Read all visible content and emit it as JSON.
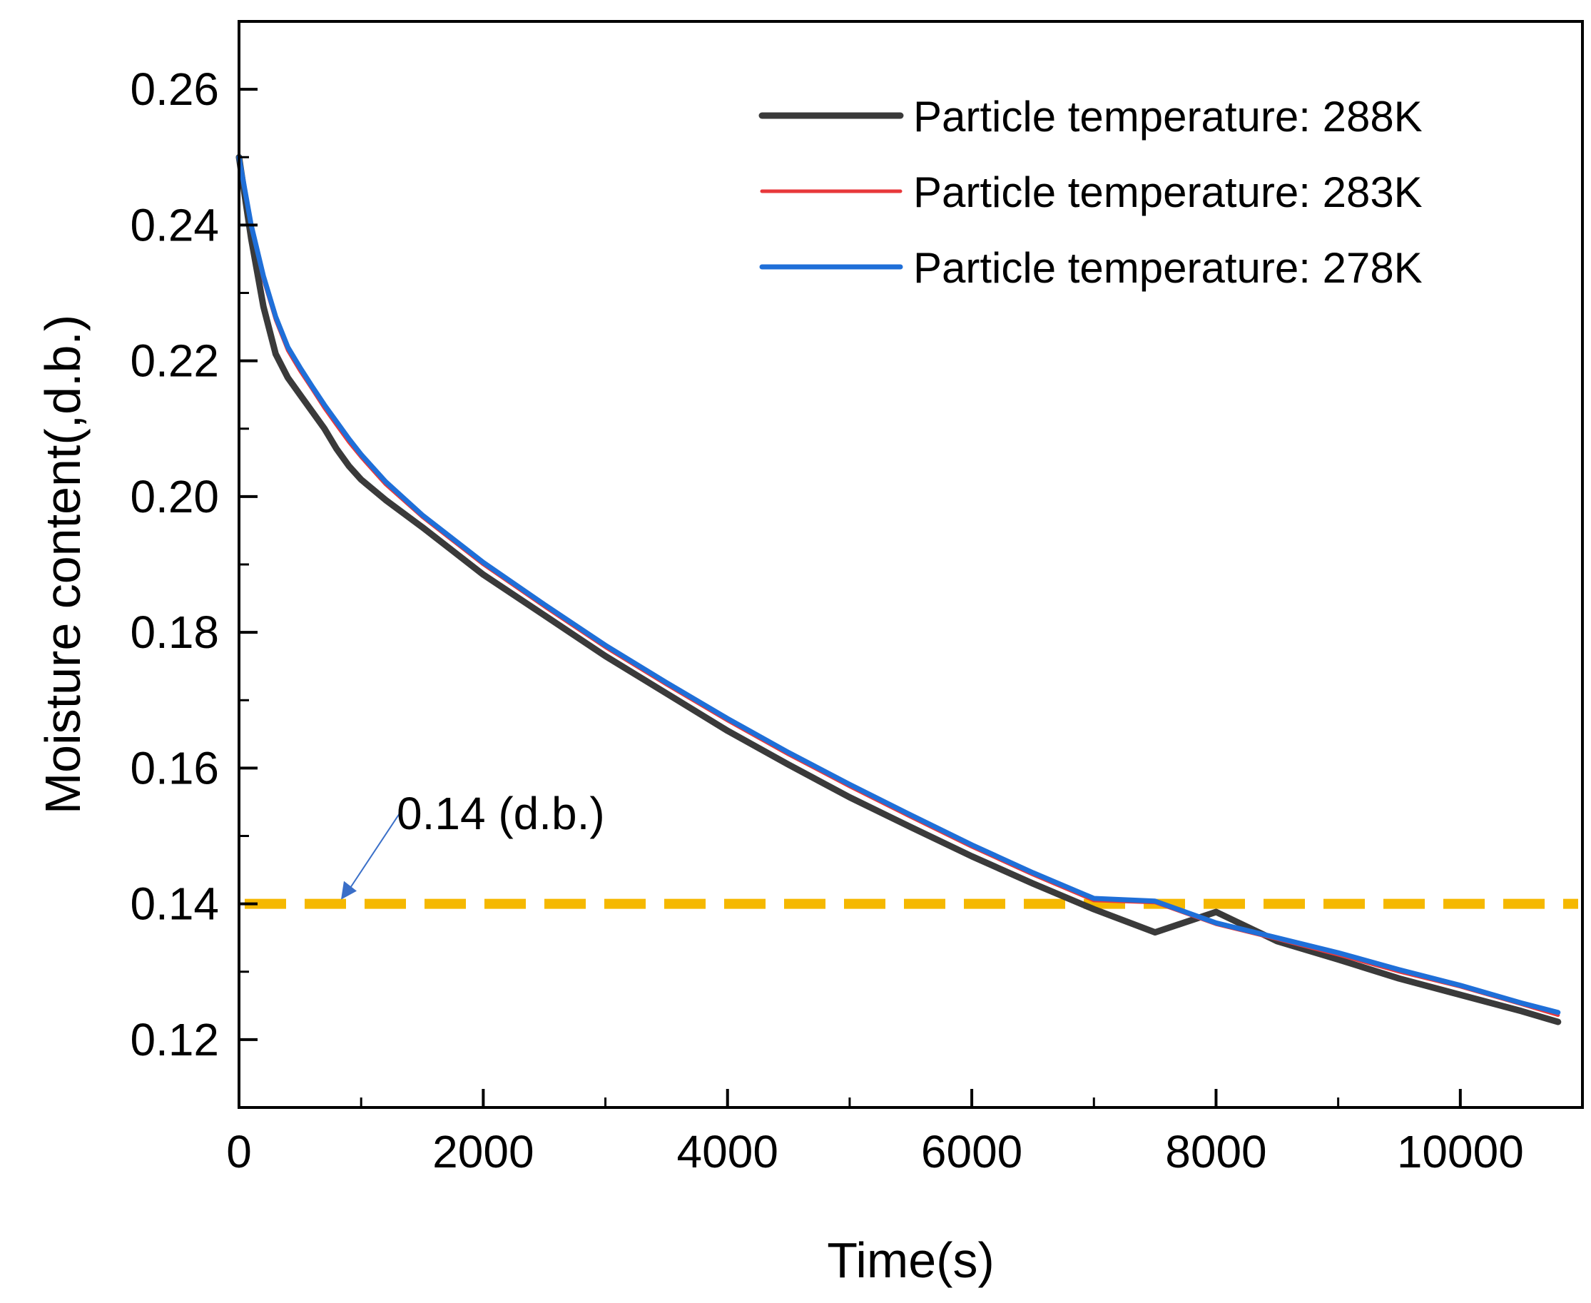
{
  "chart_data": {
    "type": "line",
    "title": "",
    "xlabel": "Time(s)",
    "ylabel": "Moisture content(,d.b.)",
    "xlim": [
      0,
      11000
    ],
    "ylim": [
      0.11,
      0.27
    ],
    "xticks": [
      0,
      2000,
      4000,
      6000,
      8000,
      10000
    ],
    "xtick_labels": [
      "0",
      "2000",
      "4000",
      "6000",
      "8000",
      "10000"
    ],
    "yticks": [
      0.12,
      0.14,
      0.16,
      0.18,
      0.2,
      0.22,
      0.24,
      0.26
    ],
    "ytick_labels": [
      "0.12",
      "0.14",
      "0.16",
      "0.18",
      "0.20",
      "0.22",
      "0.24",
      "0.26"
    ],
    "grid": false,
    "legend_position": "top-right",
    "series": [
      {
        "name": "Particle temperature: 288K",
        "color": "#3a3a3a",
        "x": [
          0,
          100,
          200,
          300,
          400,
          500,
          600,
          700,
          800,
          900,
          1000,
          1200,
          1500,
          2000,
          2500,
          3000,
          3500,
          4000,
          4500,
          5000,
          5500,
          6000,
          6500,
          7000,
          7500,
          8000,
          8500,
          9000,
          9500,
          10000,
          10500,
          10800
        ],
        "y": [
          0.25,
          0.238,
          0.228,
          0.221,
          0.2175,
          0.215,
          0.2125,
          0.21,
          0.207,
          0.2045,
          0.2025,
          0.1995,
          0.1955,
          0.1885,
          0.1825,
          0.1765,
          0.171,
          0.1655,
          0.1605,
          0.1557,
          0.1513,
          0.147,
          0.143,
          0.1392,
          0.1358,
          0.1388,
          0.1345,
          0.1318,
          0.129,
          0.1266,
          0.1242,
          0.1226
        ]
      },
      {
        "name": "Particle temperature: 283K",
        "color": "#e8383b",
        "x": [
          0,
          100,
          200,
          300,
          400,
          500,
          600,
          700,
          800,
          900,
          1000,
          1200,
          1500,
          2000,
          2500,
          3000,
          3500,
          4000,
          4500,
          5000,
          5500,
          6000,
          6500,
          7000,
          7500,
          8000,
          8500,
          9000,
          9500,
          10000,
          10500,
          10800
        ],
        "y": [
          0.25,
          0.24,
          0.232,
          0.226,
          0.2215,
          0.2185,
          0.2158,
          0.213,
          0.2105,
          0.208,
          0.2058,
          0.2018,
          0.197,
          0.19,
          0.1838,
          0.1778,
          0.1723,
          0.167,
          0.162,
          0.1573,
          0.1528,
          0.1484,
          0.1443,
          0.1405,
          0.1402,
          0.137,
          0.1348,
          0.1325,
          0.13,
          0.1278,
          0.1252,
          0.1236
        ]
      },
      {
        "name": "Particle temperature: 278K",
        "color": "#1f6fd8",
        "x": [
          0,
          100,
          200,
          300,
          400,
          500,
          600,
          700,
          800,
          900,
          1000,
          1200,
          1500,
          2000,
          2500,
          3000,
          3500,
          4000,
          4500,
          5000,
          5500,
          6000,
          6500,
          7000,
          7500,
          8000,
          8500,
          9000,
          9500,
          10000,
          10500,
          10800
        ],
        "y": [
          0.25,
          0.24,
          0.2325,
          0.2265,
          0.222,
          0.219,
          0.2162,
          0.2135,
          0.211,
          0.2085,
          0.2062,
          0.2022,
          0.1973,
          0.1903,
          0.1841,
          0.1781,
          0.1726,
          0.1673,
          0.1623,
          0.1576,
          0.1531,
          0.1487,
          0.1446,
          0.1408,
          0.1404,
          0.1372,
          0.135,
          0.1328,
          0.1303,
          0.128,
          0.1254,
          0.124
        ]
      }
    ],
    "reference_line": {
      "y": 0.14,
      "color": "#f5b800",
      "label": "0.14 (d.b.)"
    }
  }
}
